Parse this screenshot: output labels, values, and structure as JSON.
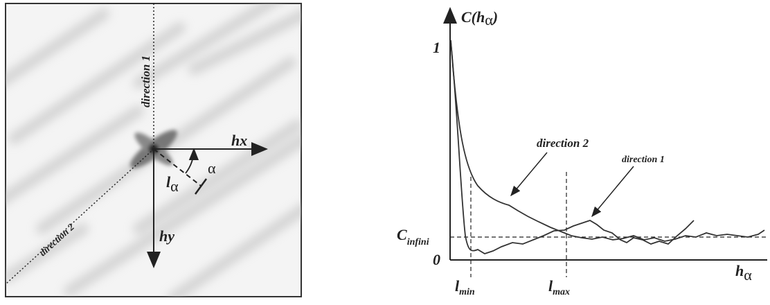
{
  "left_panel": {
    "direction_1": "direction 1",
    "direction_2": "direction 2",
    "hx": "hx",
    "hy": "hy",
    "alpha": "α",
    "l_alpha": {
      "base": "l",
      "sub": "α"
    }
  },
  "right_panel": {
    "y_axis_label": {
      "base": "C(h",
      "sub": "α",
      "close": ")"
    },
    "y_top": "1",
    "y_bottom": "0",
    "c_infini": {
      "base": "C",
      "sub": "infini"
    },
    "annotation_direction_2": "direction 2",
    "annotation_direction_1": "direction 1",
    "x_axis_label": {
      "base": "h",
      "sub": "α"
    },
    "l_min": {
      "base": "l",
      "sub": "min"
    },
    "l_max": {
      "base": "l",
      "sub": "max"
    }
  }
}
